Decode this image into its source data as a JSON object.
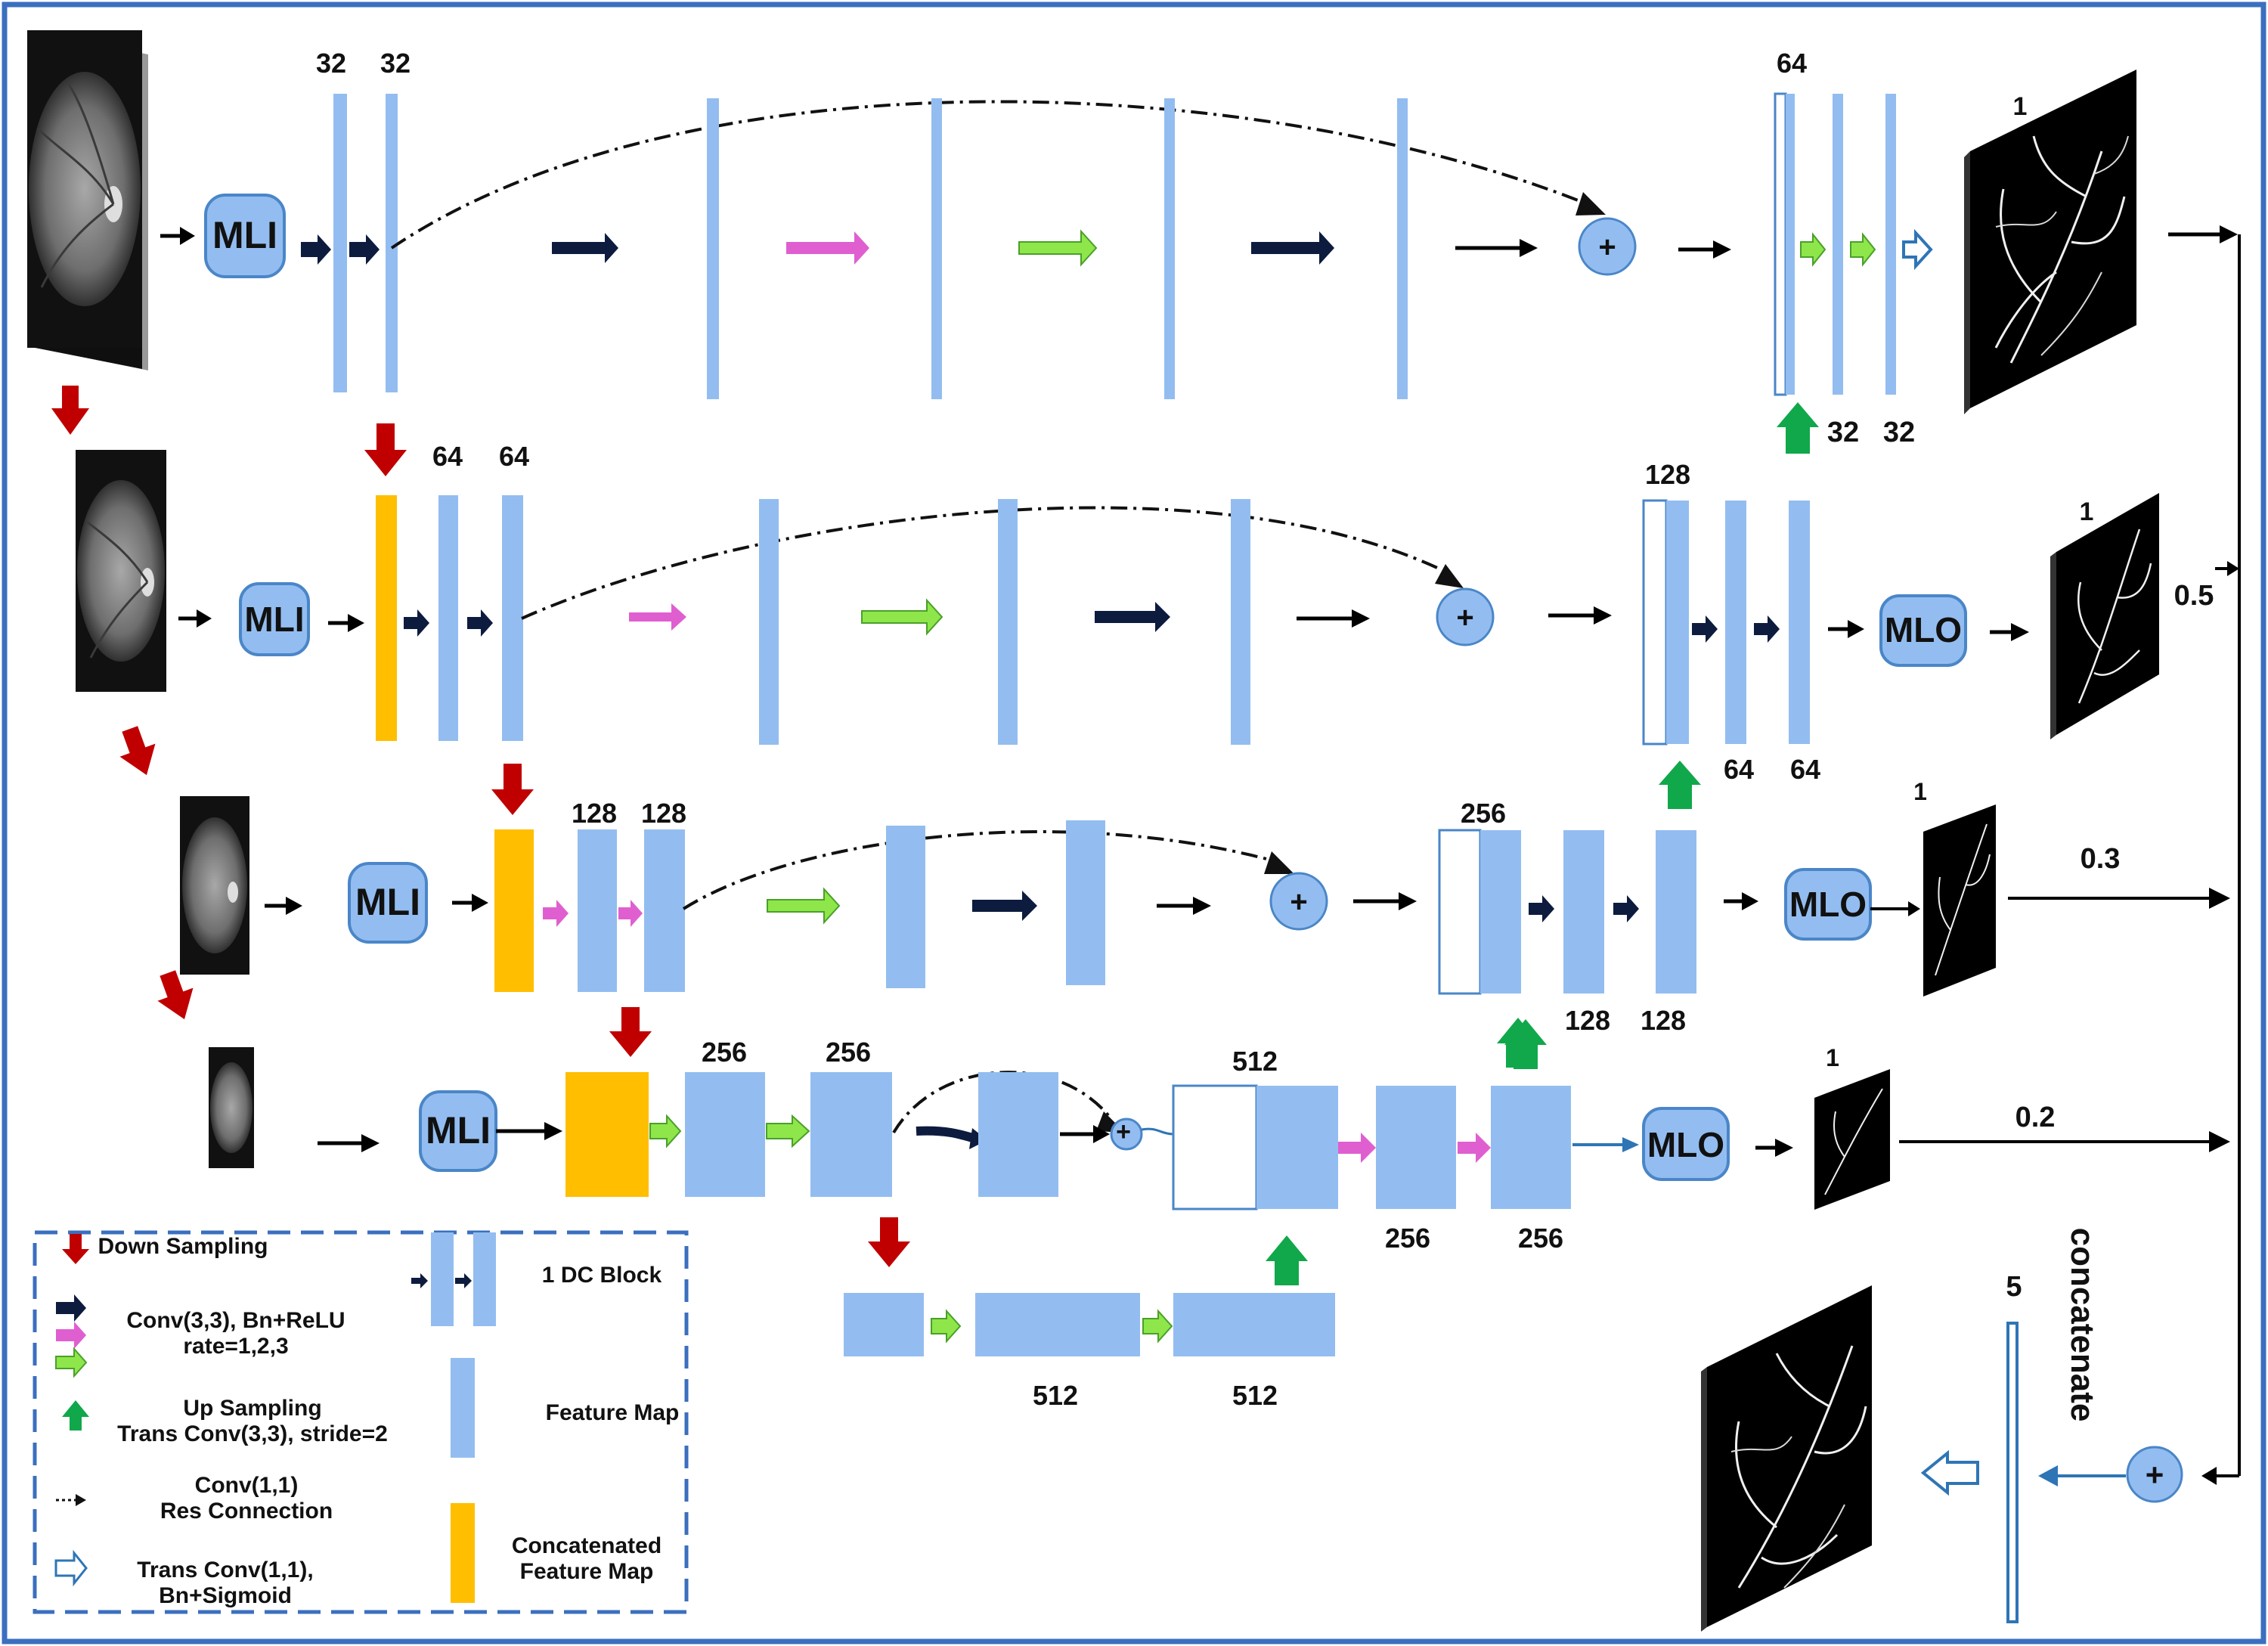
{
  "colors": {
    "frame": "#3b6fbf",
    "feature_map": "#93bdf0",
    "concat_map": "#ffbe00",
    "down_arrow": "#c00000",
    "conv_arrow": "#0d1b3e",
    "magenta_arrow": "#e05fd0",
    "green_arrow": "#8ee64a",
    "up_arrow": "#10a84a",
    "trans_arrow": "#2e75b6",
    "module_fill": "#93bdf0",
    "module_stroke": "#4a86c8"
  },
  "modules": {
    "mli": "MLI",
    "mlo": "MLO"
  },
  "channels": {
    "l1_a": "32",
    "l1_b": "32",
    "l1_dec": "64",
    "l1_up_a": "32",
    "l1_up_b": "32",
    "l2_a": "64",
    "l2_b": "64",
    "l2_dec": "128",
    "l2_out_a": "64",
    "l2_out_b": "64",
    "l3_a": "128",
    "l3_b": "128",
    "l3_dec": "256",
    "l3_out_a": "128",
    "l3_out_b": "128",
    "l4_a": "256",
    "l4_b": "256",
    "l4_dec": "512",
    "l4_out_a": "256",
    "l4_out_b": "256",
    "bottleneck_a": "512",
    "bottleneck_b": "512",
    "concat_ch": "5"
  },
  "outputs": {
    "out1": "1",
    "out2": "1",
    "out3": "1",
    "out4": "1",
    "w2": "0.5",
    "w3": "0.3",
    "w4": "0.2"
  },
  "side_label": "concatenate",
  "plus": "+",
  "legend": {
    "down_sampling": "Down Sampling",
    "conv33_line1": "Conv(3,3),  Bn+ReLU",
    "conv33_line2": "rate=1,2,3",
    "up_line1": "Up Sampling",
    "up_line2": "Trans Conv(3,3), stride=2",
    "res_line1": "Conv(1,1)",
    "res_line2": "Res Connection",
    "trans_line1": "Trans Conv(1,1),",
    "trans_line2": "Bn+Sigmoid",
    "dc_block": "1 DC Block",
    "feature_map": "Feature Map",
    "concat_line1": "Concatenated",
    "concat_line2": "Feature Map"
  }
}
